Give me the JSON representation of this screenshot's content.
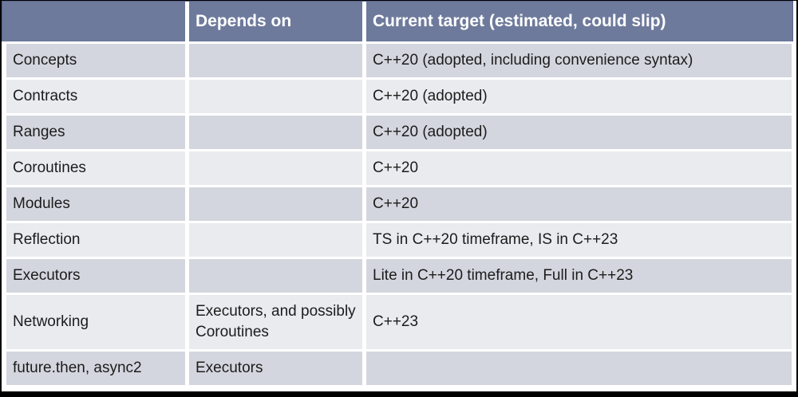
{
  "table": {
    "headers": {
      "feature": "",
      "depends_on": "Depends on",
      "target": "Current target (estimated, could slip)"
    },
    "rows": [
      {
        "feature": "Concepts",
        "depends_on": "",
        "target": "C++20 (adopted, including convenience syntax)"
      },
      {
        "feature": "Contracts",
        "depends_on": "",
        "target": "C++20 (adopted)"
      },
      {
        "feature": "Ranges",
        "depends_on": "",
        "target": "C++20 (adopted)"
      },
      {
        "feature": "Coroutines",
        "depends_on": "",
        "target": "C++20"
      },
      {
        "feature": "Modules",
        "depends_on": "",
        "target": "C++20"
      },
      {
        "feature": "Reflection",
        "depends_on": "",
        "target": "TS in C++20 timeframe, IS in C++23"
      },
      {
        "feature": "Executors",
        "depends_on": "",
        "target": "Lite in C++20 timeframe, Full in C++23"
      },
      {
        "feature": "Networking",
        "depends_on": "Executors, and possibly Coroutines",
        "target": "C++23"
      },
      {
        "feature": "future.then, async2",
        "depends_on": "Executors",
        "target": ""
      }
    ]
  },
  "colors": {
    "header_bg": "#6e7a9c",
    "header_text": "#ffffff",
    "row_odd_bg": "#d4d6df",
    "row_even_bg": "#eaebef",
    "body_text": "#1c1c1c",
    "frame": "#000000"
  }
}
